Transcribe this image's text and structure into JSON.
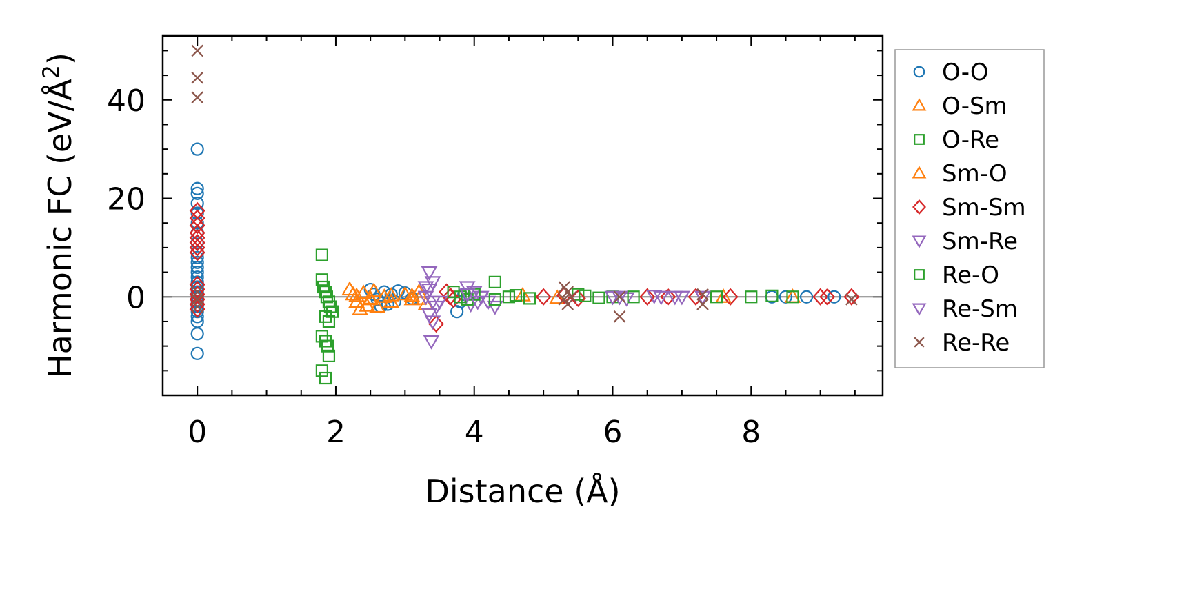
{
  "chart_data": {
    "type": "scatter",
    "xlabel": "Distance (Å)",
    "ylabel_main": "Harmonic FC (eV/Å",
    "ylabel_sup": "2",
    "ylabel_close": ")",
    "xlim": [
      -0.5,
      9.9
    ],
    "ylim": [
      -20,
      53
    ],
    "xticks": [
      0,
      2,
      4,
      6,
      8
    ],
    "yticks": [
      0,
      20,
      40
    ],
    "reference_line_y": 0,
    "grid": false,
    "legend_placement": "outside-right",
    "series": [
      {
        "name": "O-O",
        "marker": "circle",
        "color": "#1f77b4",
        "points": [
          [
            0,
            30
          ],
          [
            0,
            22
          ],
          [
            0,
            21
          ],
          [
            0,
            19
          ],
          [
            0,
            17
          ],
          [
            0,
            15
          ],
          [
            0,
            13
          ],
          [
            0,
            11
          ],
          [
            0,
            9
          ],
          [
            0,
            8
          ],
          [
            0,
            7
          ],
          [
            0,
            6
          ],
          [
            0,
            5
          ],
          [
            0,
            4
          ],
          [
            0,
            3
          ],
          [
            0,
            2
          ],
          [
            0,
            1
          ],
          [
            0,
            0
          ],
          [
            0,
            -1
          ],
          [
            0,
            -2
          ],
          [
            0,
            -3
          ],
          [
            0,
            -4
          ],
          [
            0,
            -5
          ],
          [
            0,
            -7.5
          ],
          [
            0,
            -11.5
          ],
          [
            2.5,
            1.5
          ],
          [
            2.55,
            0.5
          ],
          [
            2.6,
            -0.5
          ],
          [
            2.65,
            -2
          ],
          [
            2.7,
            1
          ],
          [
            2.75,
            -1.5
          ],
          [
            2.8,
            0.5
          ],
          [
            2.85,
            -1
          ],
          [
            2.9,
            1.2
          ],
          [
            3.0,
            0.8
          ],
          [
            3.1,
            -0.3
          ],
          [
            3.75,
            -3
          ],
          [
            3.8,
            -1
          ],
          [
            3.85,
            0.5
          ],
          [
            8.3,
            0
          ],
          [
            8.5,
            0
          ],
          [
            8.8,
            0
          ],
          [
            9.2,
            0
          ]
        ]
      },
      {
        "name": "O-Sm",
        "marker": "triangle-up",
        "color": "#ff7f0e",
        "points": [
          [
            2.2,
            1.5
          ],
          [
            2.25,
            0.5
          ],
          [
            2.3,
            -1
          ],
          [
            2.35,
            -2.5
          ],
          [
            2.4,
            0.8
          ],
          [
            2.45,
            -1.8
          ],
          [
            2.5,
            -0.5
          ],
          [
            2.55,
            1.2
          ],
          [
            2.6,
            -2
          ],
          [
            2.7,
            0
          ],
          [
            2.8,
            -1
          ],
          [
            3.0,
            0.5
          ],
          [
            3.1,
            -0.5
          ],
          [
            3.2,
            1
          ],
          [
            3.3,
            -1.5
          ],
          [
            4.7,
            0.3
          ],
          [
            5.2,
            -0.2
          ],
          [
            7.6,
            0
          ],
          [
            8.6,
            0
          ]
        ]
      },
      {
        "name": "O-Re",
        "marker": "square",
        "color": "#2ca02c",
        "points": [
          [
            1.8,
            8.5
          ],
          [
            1.8,
            3.5
          ],
          [
            1.82,
            2
          ],
          [
            1.85,
            1
          ],
          [
            1.87,
            0
          ],
          [
            1.9,
            -1
          ],
          [
            1.92,
            -2
          ],
          [
            1.95,
            -3
          ],
          [
            1.85,
            -4
          ],
          [
            1.9,
            -5
          ],
          [
            1.8,
            -8
          ],
          [
            1.85,
            -9
          ],
          [
            1.88,
            -10
          ],
          [
            1.9,
            -12
          ],
          [
            1.8,
            -15
          ],
          [
            1.85,
            -16.5
          ],
          [
            4.3,
            3
          ],
          [
            5.5,
            0.5
          ],
          [
            6.0,
            0
          ],
          [
            7.5,
            0
          ],
          [
            8.0,
            0
          ],
          [
            8.3,
            0.2
          ],
          [
            8.6,
            0
          ]
        ]
      },
      {
        "name": "Sm-O",
        "marker": "triangle-up",
        "color": "#ff7f0e",
        "points": [
          [
            2.3,
            0.2
          ],
          [
            2.5,
            -0.3
          ],
          [
            2.8,
            0.3
          ],
          [
            3.1,
            0.2
          ],
          [
            3.2,
            -0.4
          ]
        ]
      },
      {
        "name": "Sm-Sm",
        "marker": "diamond",
        "color": "#d62728",
        "points": [
          [
            0,
            17.5
          ],
          [
            0,
            16
          ],
          [
            0,
            14.5
          ],
          [
            0,
            13
          ],
          [
            0,
            12
          ],
          [
            0,
            11
          ],
          [
            0,
            10
          ],
          [
            0,
            9
          ],
          [
            0,
            2.5
          ],
          [
            0,
            1.5
          ],
          [
            0,
            0.5
          ],
          [
            0,
            -0.5
          ],
          [
            0,
            -1.5
          ],
          [
            0,
            -2.5
          ],
          [
            3.45,
            -5.5
          ],
          [
            3.6,
            1
          ],
          [
            3.65,
            0
          ],
          [
            3.7,
            -0.5
          ],
          [
            5.0,
            0
          ],
          [
            5.3,
            0.3
          ],
          [
            5.5,
            -0.3
          ],
          [
            6.5,
            0
          ],
          [
            6.8,
            0
          ],
          [
            7.2,
            0
          ],
          [
            7.7,
            0
          ],
          [
            9.0,
            0
          ],
          [
            9.1,
            0
          ],
          [
            9.45,
            0
          ]
        ]
      },
      {
        "name": "Sm-Re",
        "marker": "triangle-down",
        "color": "#9467bd",
        "points": [
          [
            3.35,
            5
          ],
          [
            3.4,
            3
          ],
          [
            3.35,
            1.5
          ],
          [
            3.3,
            0
          ],
          [
            3.4,
            -1
          ],
          [
            3.45,
            -2
          ],
          [
            3.35,
            -3.5
          ],
          [
            3.4,
            -5
          ],
          [
            3.38,
            -9
          ],
          [
            3.9,
            2
          ],
          [
            4.0,
            1
          ],
          [
            4.1,
            0
          ],
          [
            4.2,
            -1
          ],
          [
            4.3,
            -2
          ],
          [
            3.95,
            -1.5
          ],
          [
            6.0,
            0
          ],
          [
            6.2,
            -0.3
          ],
          [
            6.6,
            0.2
          ],
          [
            6.7,
            0
          ],
          [
            7.0,
            0
          ],
          [
            7.3,
            0
          ]
        ]
      },
      {
        "name": "Re-O",
        "marker": "square",
        "color": "#2ca02c",
        "points": [
          [
            3.7,
            1
          ],
          [
            3.8,
            0
          ],
          [
            3.9,
            -0.5
          ],
          [
            4.0,
            0.5
          ],
          [
            4.3,
            -0.5
          ],
          [
            4.5,
            0
          ],
          [
            4.6,
            0.3
          ],
          [
            4.8,
            -0.3
          ],
          [
            5.6,
            0.2
          ],
          [
            5.8,
            -0.2
          ],
          [
            6.3,
            0
          ]
        ]
      },
      {
        "name": "Re-Sm",
        "marker": "triangle-down",
        "color": "#9467bd",
        "points": [
          [
            3.3,
            2
          ],
          [
            3.5,
            -1
          ],
          [
            3.9,
            0.5
          ],
          [
            4.05,
            -1
          ],
          [
            6.1,
            0
          ],
          [
            6.9,
            0
          ]
        ]
      },
      {
        "name": "Re-Re",
        "marker": "x",
        "color": "#8c564b",
        "points": [
          [
            0,
            50
          ],
          [
            0,
            44.5
          ],
          [
            0,
            40.5
          ],
          [
            0,
            1
          ],
          [
            0,
            -0.5
          ],
          [
            0,
            -2
          ],
          [
            5.3,
            2
          ],
          [
            5.35,
            1
          ],
          [
            5.4,
            0
          ],
          [
            5.3,
            -0.5
          ],
          [
            5.35,
            -1.5
          ],
          [
            6.1,
            -4
          ],
          [
            6.1,
            0
          ],
          [
            7.3,
            -1.5
          ],
          [
            7.3,
            0.5
          ],
          [
            9.45,
            -0.5
          ]
        ]
      }
    ]
  }
}
